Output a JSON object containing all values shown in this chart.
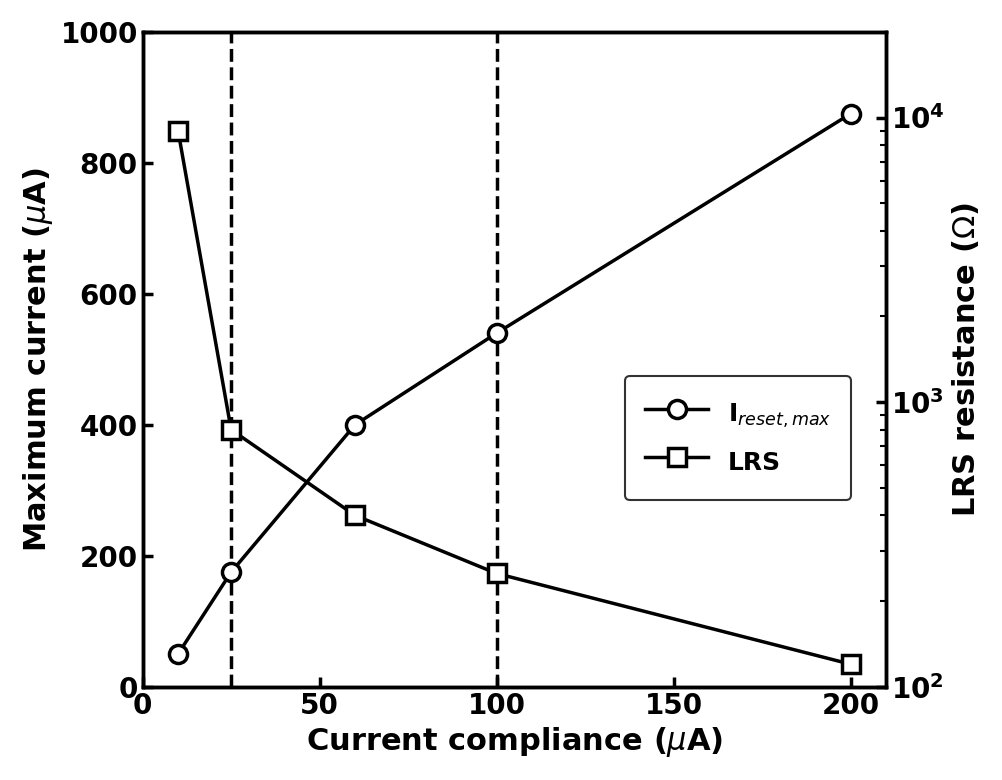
{
  "x_ireset": [
    10,
    25,
    60,
    100,
    200
  ],
  "y_ireset": [
    50,
    175,
    400,
    540,
    875
  ],
  "x_lrs": [
    10,
    25,
    60,
    100,
    200
  ],
  "y_lrs": [
    9000,
    800,
    400,
    250,
    120
  ],
  "xlabel": "Current compliance ($\\mu$A)",
  "ylabel_left": "Maximum current ($\\mu$A)",
  "ylabel_right": "LRS resistance ($\\Omega$)",
  "legend_ireset": "I$_{reset,max}$",
  "legend_lrs": "LRS",
  "xlim": [
    0,
    210
  ],
  "ylim_left": [
    0,
    1000
  ],
  "ylim_right": [
    100,
    20000
  ],
  "xticks": [
    0,
    50,
    100,
    150,
    200
  ],
  "yticks_left": [
    0,
    200,
    400,
    600,
    800,
    1000
  ],
  "vline1": 25,
  "vline2": 100,
  "line_color": "black",
  "background_color": "white",
  "xlabel_fontsize": 22,
  "ylabel_fontsize": 22,
  "tick_labelsize": 20,
  "legend_fontsize": 18,
  "linewidth": 2.5,
  "markersize": 13,
  "markeredgewidth": 2.5,
  "spine_linewidth": 2.5
}
